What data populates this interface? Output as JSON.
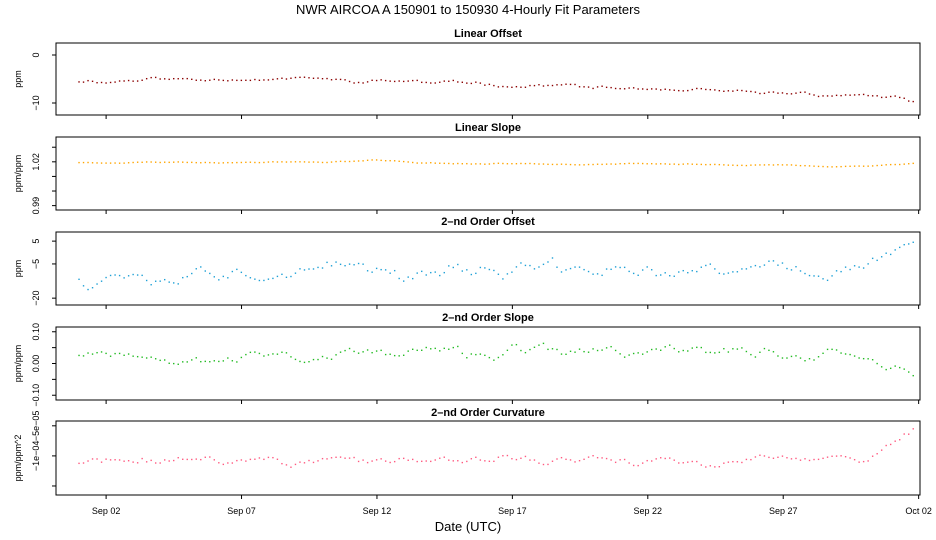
{
  "figure": {
    "title": "NWR   AIRCOA A   150901 to 150930   4-Hourly Fit Parameters",
    "xlabel": "Date (UTC)",
    "x_ticks": [
      "Sep 02",
      "Sep 07",
      "Sep 12",
      "Sep 17",
      "Sep 22",
      "Sep 27",
      "Oct 02"
    ],
    "x_tick_days": [
      2,
      7,
      12,
      17,
      22,
      27,
      32
    ],
    "x_range_days": [
      0.15,
      32.05
    ]
  },
  "chart_data": [
    {
      "type": "scatter",
      "title": "Linear Offset",
      "ylabel": "ppm",
      "color": "#8b0000",
      "y_ticks": [
        0,
        -10
      ],
      "y_tick_labels": [
        "0",
        "−10"
      ],
      "ylim": [
        -12.5,
        2.5
      ],
      "x_start_day": 1.0,
      "x_end_day": 31.8,
      "trend": [
        -5.5,
        -5.2,
        -5.0,
        -5.0,
        -4.8,
        -5.2,
        -5.5,
        -5.6,
        -6.0,
        -6.2,
        -6.5,
        -7.0,
        -7.5,
        -7.8,
        -8.0,
        -8.2,
        -8.2,
        -9.8
      ],
      "noise": 0.5,
      "seed": 11
    },
    {
      "type": "scatter",
      "title": "Linear Slope",
      "ylabel": "ppm/ppm",
      "color": "#ffa500",
      "y_ticks": [
        0.99,
        1.0,
        1.01,
        1.02,
        1.03
      ],
      "y_tick_labels": [
        "0.99",
        "",
        "",
        "1.02",
        ""
      ],
      "ylim": [
        0.987,
        1.037
      ],
      "x_start_day": 1.0,
      "x_end_day": 31.8,
      "trend": [
        1.0195,
        1.0195,
        1.02,
        1.0195,
        1.02,
        1.02,
        1.021,
        1.0195,
        1.0185,
        1.019,
        1.0185,
        1.0185,
        1.0185,
        1.018,
        1.018,
        1.017,
        1.017,
        1.019
      ],
      "noise": 0.0004,
      "seed": 23
    },
    {
      "type": "scatter",
      "title": "2–nd Order Offset",
      "ylabel": "ppm",
      "color": "#1ea0d6",
      "y_ticks": [
        5,
        -5,
        -20
      ],
      "y_tick_labels": [
        "5",
        "−5",
        "−20"
      ],
      "ylim": [
        -23,
        9
      ],
      "x_start_day": 1.0,
      "x_end_day": 31.8,
      "trend": [
        -10,
        -9,
        -8,
        -7,
        -8,
        -7,
        -8,
        -8,
        -7,
        -8,
        -8,
        -8,
        -9,
        -9,
        -8,
        -8,
        -6,
        5
      ],
      "noise": 4.2,
      "seed": 37
    },
    {
      "type": "scatter",
      "title": "2–nd Order Slope",
      "ylabel": "ppm/ppm",
      "color": "#22bb22",
      "y_ticks": [
        0.1,
        0.05,
        0.0,
        -0.05,
        -0.1
      ],
      "y_tick_labels": [
        "0.10",
        "",
        "0.00",
        "",
        "−0.10"
      ],
      "ylim": [
        -0.115,
        0.115
      ],
      "x_start_day": 1.0,
      "x_end_day": 31.8,
      "trend": [
        0.045,
        0.03,
        0.03,
        0.025,
        0.03,
        0.025,
        0.03,
        0.035,
        0.03,
        0.035,
        0.035,
        0.03,
        0.035,
        0.035,
        0.03,
        0.035,
        0.03,
        -0.04
      ],
      "noise": 0.022,
      "seed": 53
    },
    {
      "type": "scatter",
      "title": "2–nd Order Curvature",
      "ylabel": "ppm/ppm^2",
      "color": "#ff5a80",
      "y_ticks": [
        -5e-05,
        -0.0001,
        -0.00015
      ],
      "y_tick_labels": [
        "−5e−05",
        "−1e−04",
        ""
      ],
      "ylim": [
        -0.000165,
        -4.2e-05
      ],
      "x_start_day": 1.0,
      "x_end_day": 31.8,
      "trend": [
        -0.000112,
        -0.00011,
        -0.000108,
        -0.000106,
        -0.000108,
        -0.000107,
        -0.000107,
        -0.000108,
        -0.000107,
        -0.000108,
        -0.000108,
        -0.000108,
        -0.00011,
        -0.000109,
        -0.000108,
        -0.000108,
        -0.000104,
        -6e-05
      ],
      "noise": 9e-06,
      "seed": 71
    }
  ]
}
